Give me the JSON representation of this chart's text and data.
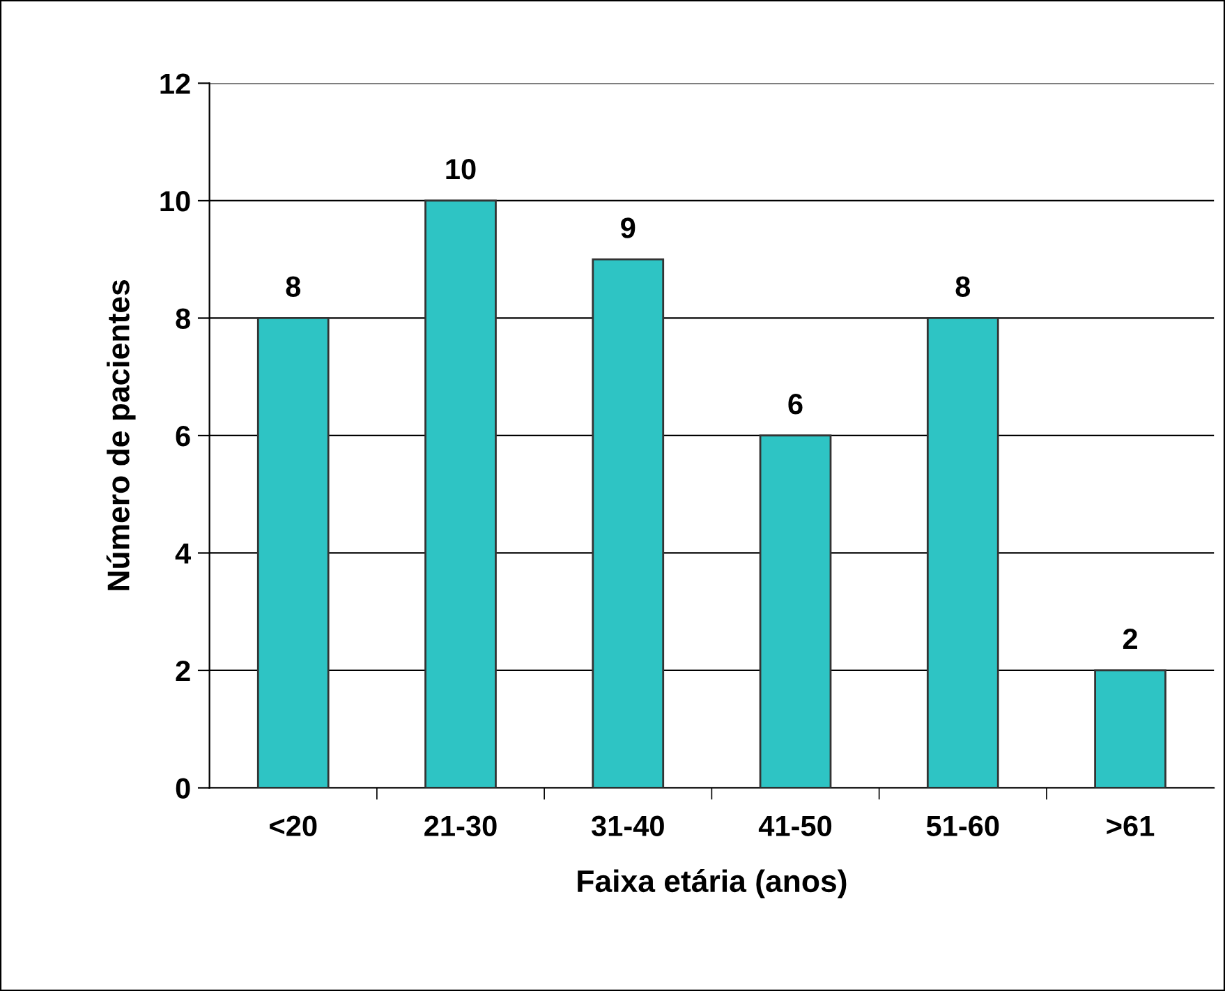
{
  "chart_data": {
    "type": "bar",
    "xlabel": "Faixa etária (anos)",
    "ylabel": "Número de pacientes",
    "categories": [
      "<20",
      "21-30",
      "31-40",
      "41-50",
      "51-60",
      ">61"
    ],
    "values": [
      8,
      10,
      9,
      6,
      8,
      2
    ],
    "color": "#2ec4c4",
    "ylim": [
      0,
      12
    ],
    "yticks": [
      0,
      2,
      4,
      6,
      8,
      10,
      12
    ],
    "grid": "y",
    "data_labels": true
  }
}
